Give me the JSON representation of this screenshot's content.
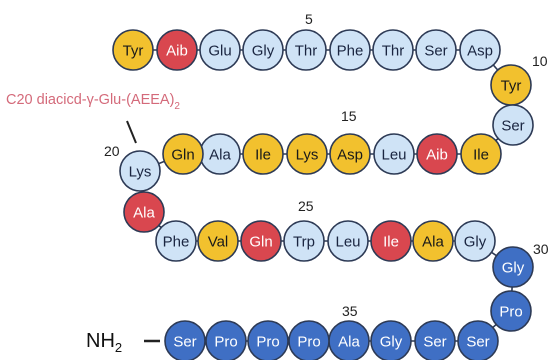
{
  "colors": {
    "yellow": "#f2c12e",
    "red": "#d9474f",
    "light": "#cfe3f6",
    "blue": "#3f6fc4",
    "outline": "#2d3a55"
  },
  "modification_label": "C20 diacicd-γ-Glu-(AEEA)",
  "modification_subscript": "2",
  "n_terminus_label": "NH",
  "n_terminus_subscript": "2",
  "position_labels": [
    "5",
    "10",
    "15",
    "20",
    "25",
    "30",
    "35"
  ],
  "residues": [
    {
      "name": "Tyr",
      "color": "yellow"
    },
    {
      "name": "Aib",
      "color": "red"
    },
    {
      "name": "Glu",
      "color": "light"
    },
    {
      "name": "Gly",
      "color": "light"
    },
    {
      "name": "Thr",
      "color": "light"
    },
    {
      "name": "Phe",
      "color": "light"
    },
    {
      "name": "Thr",
      "color": "light"
    },
    {
      "name": "Ser",
      "color": "light"
    },
    {
      "name": "Asp",
      "color": "light"
    },
    {
      "name": "Tyr",
      "color": "yellow"
    },
    {
      "name": "Ser",
      "color": "light"
    },
    {
      "name": "Ile",
      "color": "yellow"
    },
    {
      "name": "Aib",
      "color": "red"
    },
    {
      "name": "Leu",
      "color": "light"
    },
    {
      "name": "Asp",
      "color": "yellow"
    },
    {
      "name": "Lys",
      "color": "yellow"
    },
    {
      "name": "Ile",
      "color": "yellow"
    },
    {
      "name": "Ala",
      "color": "light"
    },
    {
      "name": "Gln",
      "color": "yellow"
    },
    {
      "name": "Lys",
      "color": "light"
    },
    {
      "name": "Ala",
      "color": "red"
    },
    {
      "name": "Phe",
      "color": "light"
    },
    {
      "name": "Val",
      "color": "yellow"
    },
    {
      "name": "Gln",
      "color": "red"
    },
    {
      "name": "Trp",
      "color": "light"
    },
    {
      "name": "Leu",
      "color": "light"
    },
    {
      "name": "Ile",
      "color": "red"
    },
    {
      "name": "Ala",
      "color": "yellow"
    },
    {
      "name": "Gly",
      "color": "light"
    },
    {
      "name": "Gly",
      "color": "blue"
    },
    {
      "name": "Pro",
      "color": "blue"
    },
    {
      "name": "Ser",
      "color": "blue"
    },
    {
      "name": "Ser",
      "color": "blue"
    },
    {
      "name": "Gly",
      "color": "blue"
    },
    {
      "name": "Ala",
      "color": "blue"
    },
    {
      "name": "Pro",
      "color": "blue"
    },
    {
      "name": "Pro",
      "color": "blue"
    },
    {
      "name": "Pro",
      "color": "blue"
    },
    {
      "name": "Ser",
      "color": "blue"
    }
  ]
}
